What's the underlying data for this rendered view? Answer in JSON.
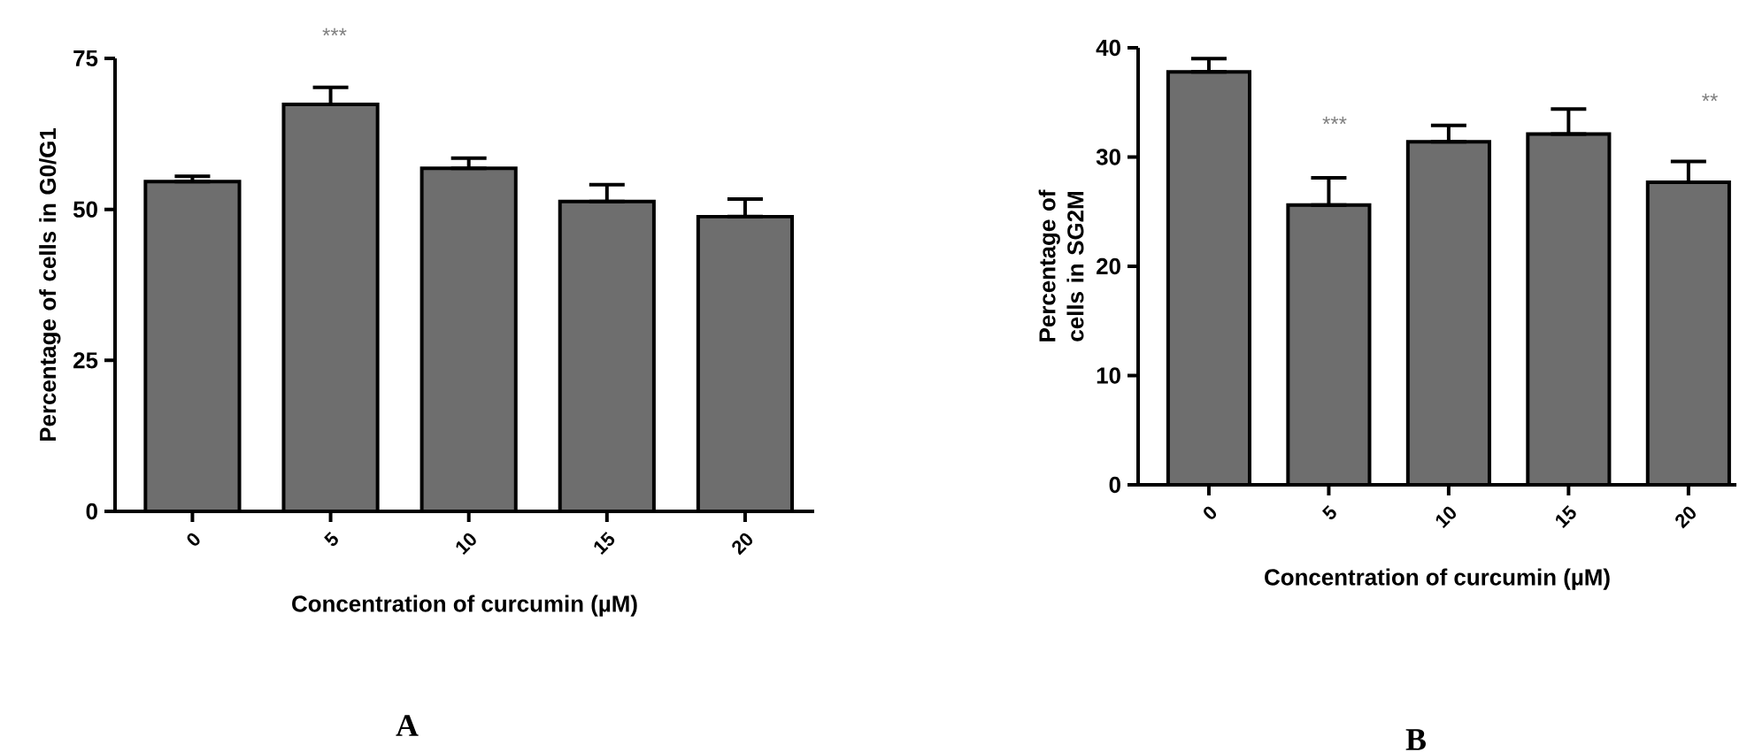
{
  "chart_data": [
    {
      "type": "bar",
      "categories": [
        "0",
        "5",
        "10",
        "15",
        "20"
      ],
      "values": [
        54.6,
        67.4,
        56.8,
        51.3,
        48.8
      ],
      "errors": [
        [
          54.6,
          55.5
        ],
        [
          67.4,
          70.2
        ],
        [
          56.8,
          58.5
        ],
        [
          51.3,
          54.1
        ],
        [
          48.8,
          51.7
        ]
      ],
      "color": "#6e6e6e",
      "ylim": [
        0,
        75
      ],
      "yticks": [
        0,
        25,
        50,
        75
      ],
      "ylabel": "Percentage of cells in G0/G1",
      "xlabel": "Concentration of curcumin (µM)",
      "annotations": [
        "***",
        "A"
      ]
    },
    {
      "type": "bar",
      "categories": [
        "0",
        "5",
        "10",
        "15",
        "20"
      ],
      "values": [
        37.8,
        25.6,
        31.4,
        32.1,
        27.7
      ],
      "errors": [
        [
          37.8,
          39.0
        ],
        [
          25.6,
          28.1
        ],
        [
          31.4,
          32.9
        ],
        [
          32.1,
          34.4
        ],
        [
          27.7,
          29.6
        ]
      ],
      "color": "#6e6e6e",
      "ylim": [
        0,
        40
      ],
      "yticks": [
        0,
        10,
        20,
        30,
        40
      ],
      "ylabel": "Percentage of cells in SG2M",
      "xlabel": "Concentration of curcumin (µM)",
      "annotations": [
        "***",
        "**",
        "B"
      ]
    }
  ]
}
